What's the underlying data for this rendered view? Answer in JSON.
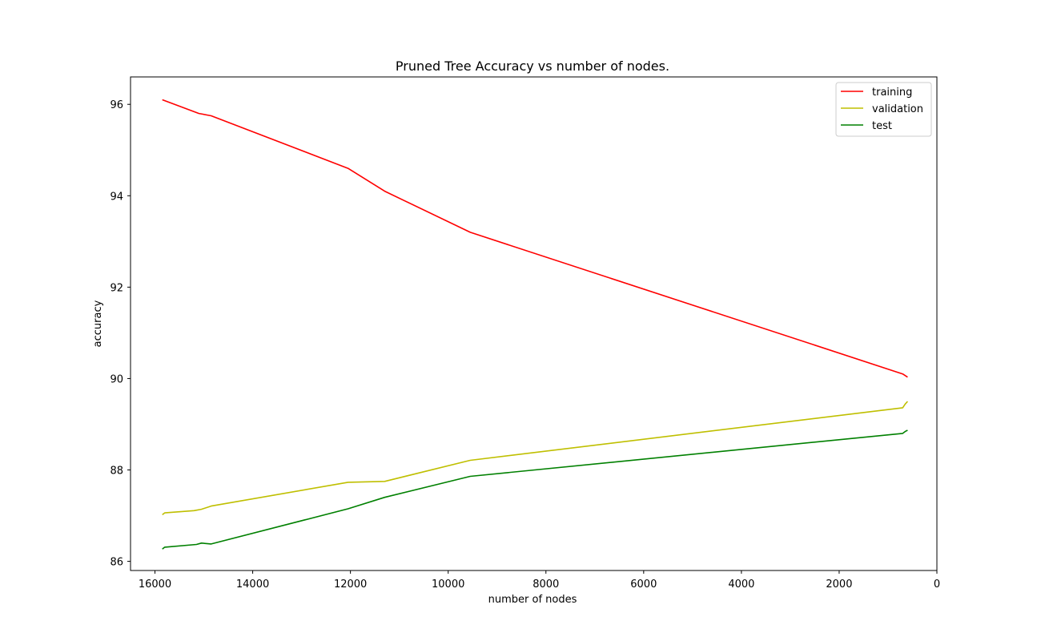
{
  "chart_data": {
    "type": "line",
    "title": "Pruned Tree Accuracy vs number of nodes.",
    "xlabel": "number of nodes",
    "ylabel": "accuracy",
    "xlim": [
      16500,
      0
    ],
    "ylim": [
      85.8,
      96.6
    ],
    "x_ticks": [
      16000,
      14000,
      12000,
      10000,
      8000,
      6000,
      4000,
      2000,
      0
    ],
    "y_ticks": [
      86,
      88,
      90,
      92,
      94,
      96
    ],
    "grid": false,
    "legend_position": "top-right",
    "series": [
      {
        "name": "training",
        "color": "#ff0000",
        "points": [
          [
            15850,
            96.1
          ],
          [
            15100,
            95.8
          ],
          [
            14850,
            95.75
          ],
          [
            12050,
            94.6
          ],
          [
            11300,
            94.1
          ],
          [
            9550,
            93.2
          ],
          [
            700,
            90.1
          ],
          [
            600,
            90.03
          ]
        ]
      },
      {
        "name": "validation",
        "color": "#bfbf00",
        "points": [
          [
            15850,
            87.02
          ],
          [
            15800,
            87.06
          ],
          [
            15200,
            87.11
          ],
          [
            15050,
            87.14
          ],
          [
            14850,
            87.21
          ],
          [
            12050,
            87.73
          ],
          [
            11300,
            87.75
          ],
          [
            9550,
            88.21
          ],
          [
            700,
            89.36
          ],
          [
            650,
            89.44
          ],
          [
            600,
            89.5
          ]
        ]
      },
      {
        "name": "test",
        "color": "#008000",
        "points": [
          [
            15850,
            86.27
          ],
          [
            15800,
            86.31
          ],
          [
            15150,
            86.37
          ],
          [
            15050,
            86.4
          ],
          [
            14850,
            86.38
          ],
          [
            12050,
            87.15
          ],
          [
            11300,
            87.4
          ],
          [
            9550,
            87.86
          ],
          [
            700,
            88.8
          ],
          [
            650,
            88.84
          ],
          [
            600,
            88.87
          ]
        ]
      }
    ]
  }
}
